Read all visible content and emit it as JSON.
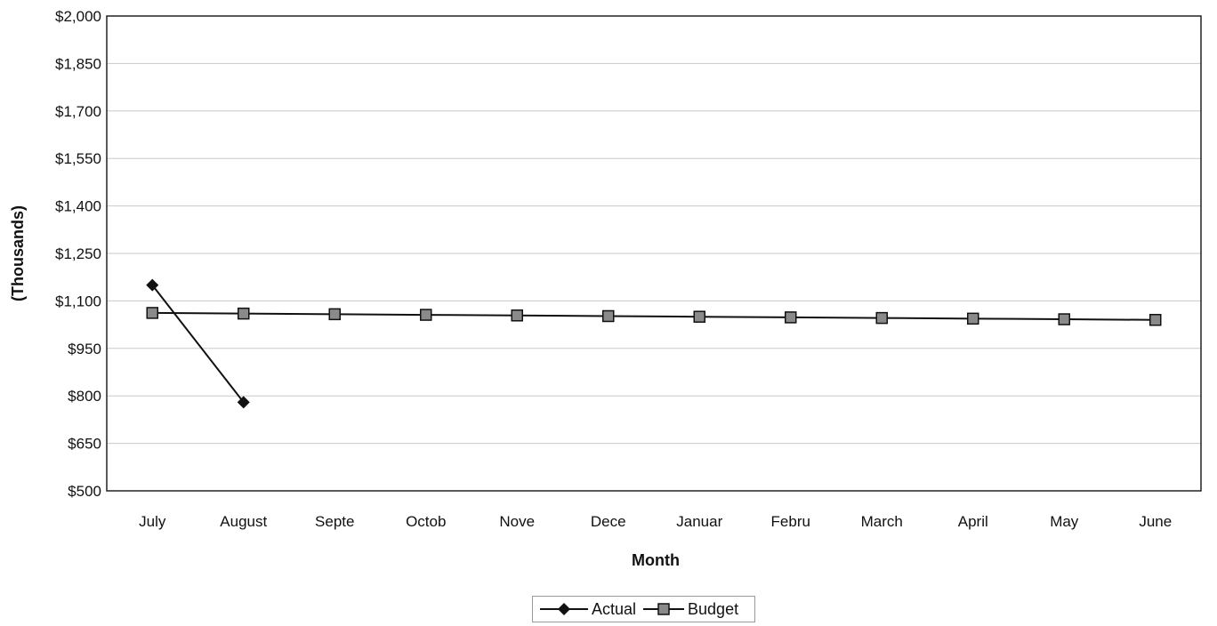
{
  "chart_data": {
    "type": "line",
    "xlabel": "Month",
    "ylabel": "(Thousands)",
    "categories": [
      "July",
      "August",
      "Septe",
      "Octob",
      "Nove",
      "Dece",
      "Januar",
      "Febru",
      "March",
      "April",
      "May",
      "June"
    ],
    "yticks": [
      "$2,000",
      "$1,850",
      "$1,700",
      "$1,550",
      "$1,400",
      "$1,250",
      "$1,100",
      "$950",
      "$800",
      "$650",
      "$500"
    ],
    "ylim": [
      500,
      2000
    ],
    "grid": true,
    "legend_position": "bottom",
    "series": [
      {
        "name": "Actual",
        "marker": "diamond",
        "color": "#111111",
        "values": [
          1150,
          780,
          null,
          null,
          null,
          null,
          null,
          null,
          null,
          null,
          null,
          null
        ]
      },
      {
        "name": "Budget",
        "marker": "square",
        "color": "#111111",
        "marker_fill": "#8a8a8a",
        "values": [
          1062,
          1060,
          1058,
          1056,
          1054,
          1052,
          1050,
          1048,
          1046,
          1044,
          1042,
          1040
        ]
      }
    ]
  }
}
